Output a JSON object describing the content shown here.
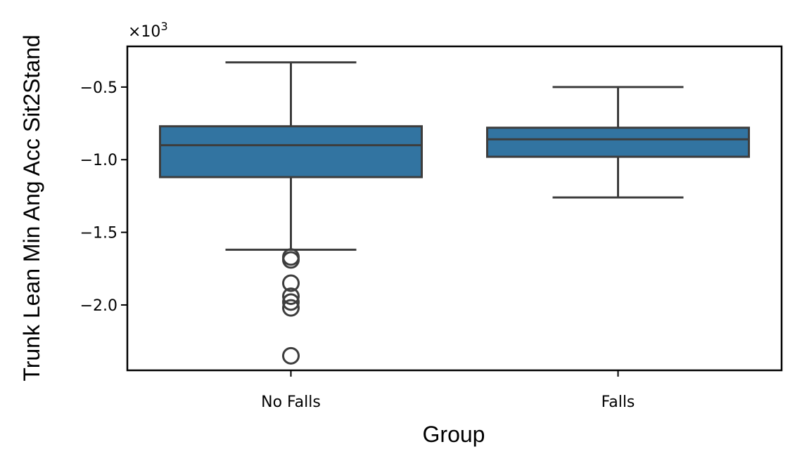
{
  "chart_data": {
    "type": "box",
    "xlabel": "Group",
    "ylabel": "Trunk Lean Min Ang Acc Sit2Stand",
    "y_multiplier_label": "×10",
    "y_multiplier_exponent": "3",
    "ylim": [
      -2.45,
      -0.22
    ],
    "y_ticks": [
      -0.5,
      -1.0,
      -1.5,
      -2.0
    ],
    "y_tick_labels": [
      "−0.5",
      "−1.0",
      "−1.5",
      "−2.0"
    ],
    "box_color": "#3274a1",
    "line_color": "#3d3d3d",
    "categories": [
      "No Falls",
      "Falls"
    ],
    "boxes": [
      {
        "category": "No Falls",
        "whisker_high": -0.33,
        "q3": -0.77,
        "median": -0.9,
        "q1": -1.12,
        "whisker_low": -1.62,
        "outliers": [
          -1.67,
          -1.69,
          -1.85,
          -1.94,
          -1.98,
          -2.02,
          -2.35
        ]
      },
      {
        "category": "Falls",
        "whisker_high": -0.5,
        "q3": -0.78,
        "median": -0.86,
        "q1": -0.98,
        "whisker_low": -1.26,
        "outliers": []
      }
    ],
    "grid": false
  }
}
